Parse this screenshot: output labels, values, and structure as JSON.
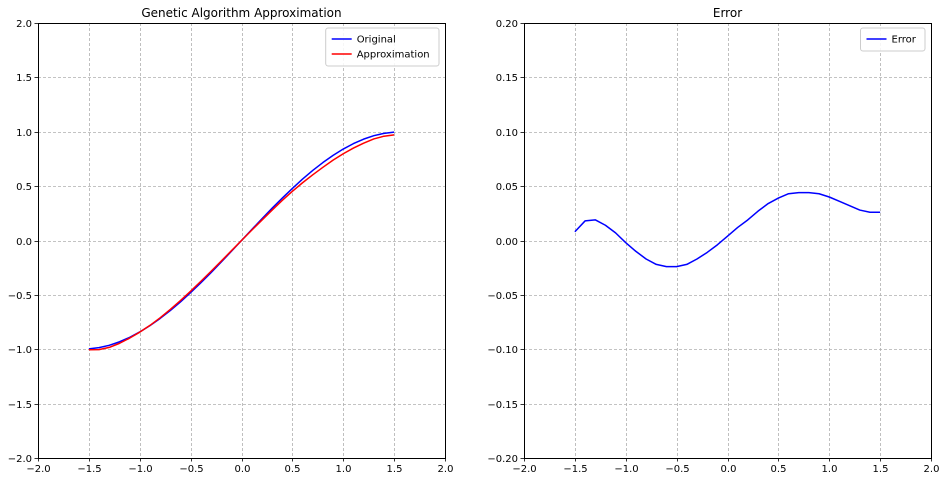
{
  "chart_data": [
    {
      "type": "line",
      "title": "Genetic Algorithm Approximation",
      "xlabel": "",
      "ylabel": "",
      "xlim": [
        -2.0,
        2.0
      ],
      "ylim": [
        -2.0,
        2.0
      ],
      "xticks": [
        "−2.0",
        "−1.5",
        "−1.0",
        "−0.5",
        "0.0",
        "0.5",
        "1.0",
        "1.5",
        "2.0"
      ],
      "yticks": [
        "−2.0",
        "−1.5",
        "−1.0",
        "−0.5",
        "0.0",
        "0.5",
        "1.0",
        "1.5",
        "2.0"
      ],
      "grid": true,
      "legend": "upper right",
      "series": [
        {
          "name": "Original",
          "color": "#0000ff",
          "x": [
            -1.5,
            -1.4,
            -1.3,
            -1.2,
            -1.1,
            -1.0,
            -0.9,
            -0.8,
            -0.7,
            -0.6,
            -0.5,
            -0.4,
            -0.3,
            -0.2,
            -0.1,
            0.0,
            0.1,
            0.2,
            0.3,
            0.4,
            0.5,
            0.6,
            0.7,
            0.8,
            0.9,
            1.0,
            1.1,
            1.2,
            1.3,
            1.4,
            1.5
          ],
          "y": [
            -0.997,
            -0.985,
            -0.964,
            -0.932,
            -0.891,
            -0.841,
            -0.783,
            -0.717,
            -0.644,
            -0.565,
            -0.479,
            -0.389,
            -0.296,
            -0.199,
            -0.1,
            0.0,
            0.1,
            0.199,
            0.296,
            0.389,
            0.479,
            0.565,
            0.644,
            0.717,
            0.783,
            0.841,
            0.891,
            0.932,
            0.964,
            0.985,
            0.997
          ]
        },
        {
          "name": "Approximation",
          "color": "#ff0000",
          "x": [
            -1.5,
            -1.4,
            -1.3,
            -1.2,
            -1.1,
            -1.0,
            -0.9,
            -0.8,
            -0.7,
            -0.6,
            -0.5,
            -0.4,
            -0.3,
            -0.2,
            -0.1,
            0.0,
            0.1,
            0.2,
            0.3,
            0.4,
            0.5,
            0.6,
            0.7,
            0.8,
            0.9,
            1.0,
            1.1,
            1.2,
            1.3,
            1.4,
            1.5
          ],
          "y": [
            -1.005,
            -1.003,
            -0.983,
            -0.946,
            -0.898,
            -0.843,
            -0.781,
            -0.711,
            -0.634,
            -0.552,
            -0.466,
            -0.376,
            -0.284,
            -0.19,
            -0.095,
            0.0,
            0.094,
            0.187,
            0.279,
            0.368,
            0.452,
            0.531,
            0.604,
            0.673,
            0.739,
            0.798,
            0.85,
            0.895,
            0.934,
            0.959,
            0.971
          ]
        }
      ]
    },
    {
      "type": "line",
      "title": "Error",
      "xlabel": "",
      "ylabel": "",
      "xlim": [
        -2.0,
        2.0
      ],
      "ylim": [
        -0.2,
        0.2
      ],
      "xticks": [
        "−2.0",
        "−1.5",
        "−1.0",
        "−0.5",
        "0.0",
        "0.5",
        "1.0",
        "1.5",
        "2.0"
      ],
      "yticks": [
        "−0.20",
        "−0.15",
        "−0.10",
        "−0.05",
        "0.00",
        "0.05",
        "0.10",
        "0.15",
        "0.20"
      ],
      "grid": true,
      "legend": "upper right",
      "series": [
        {
          "name": "Error",
          "color": "#0000ff",
          "x": [
            -1.5,
            -1.4,
            -1.3,
            -1.2,
            -1.1,
            -1.0,
            -0.9,
            -0.8,
            -0.7,
            -0.6,
            -0.5,
            -0.4,
            -0.3,
            -0.2,
            -0.1,
            0.0,
            0.1,
            0.2,
            0.3,
            0.4,
            0.5,
            0.6,
            0.7,
            0.8,
            0.9,
            1.0,
            1.1,
            1.2,
            1.3,
            1.4,
            1.5
          ],
          "y": [
            0.008,
            0.018,
            0.019,
            0.014,
            0.007,
            -0.002,
            -0.01,
            -0.017,
            -0.022,
            -0.024,
            -0.024,
            -0.022,
            -0.017,
            -0.011,
            -0.004,
            0.004,
            0.012,
            0.019,
            0.027,
            0.034,
            0.039,
            0.043,
            0.044,
            0.044,
            0.043,
            0.04,
            0.036,
            0.032,
            0.028,
            0.026,
            0.026
          ]
        }
      ]
    }
  ]
}
